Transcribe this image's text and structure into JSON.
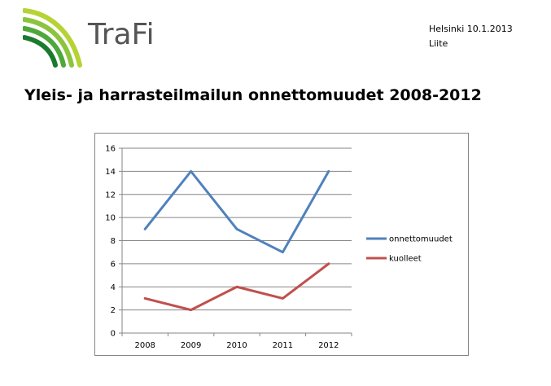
{
  "header": {
    "brand": "TraFi",
    "location_date": "Helsinki 10.1.2013",
    "attachment": "Liite"
  },
  "page_title": "Yleis- ja harrasteilmailun onnettomuudet 2008-2012",
  "colors": {
    "logo_green_dark": "#1a7a2e",
    "logo_green_light": "#b5d334",
    "series_accidents": "#4f81bd",
    "series_deaths": "#c0504d",
    "gridline": "#868686"
  },
  "chart_data": {
    "type": "line",
    "x": [
      "2008",
      "2009",
      "2010",
      "2011",
      "2012"
    ],
    "series": [
      {
        "name": "onnettomuudet",
        "values": [
          9,
          14,
          9,
          7,
          14
        ]
      },
      {
        "name": "kuolleet",
        "values": [
          3,
          2,
          4,
          3,
          6
        ]
      }
    ],
    "ylim": [
      0,
      16
    ],
    "yticks": [
      "0",
      "2",
      "4",
      "6",
      "8",
      "10",
      "12",
      "14",
      "16"
    ],
    "grid": "horizontal",
    "legend": "right"
  }
}
